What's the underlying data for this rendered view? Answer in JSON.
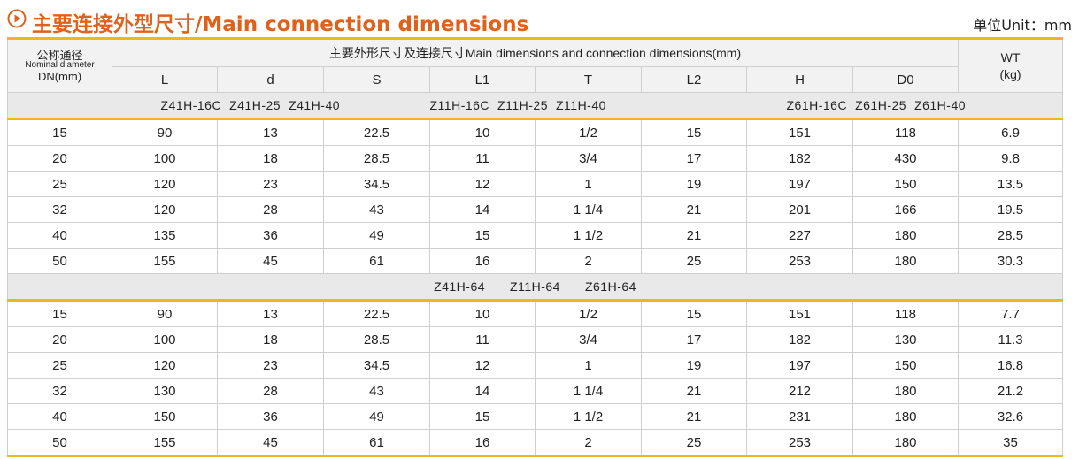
{
  "header": {
    "title": "主要连接外型尺寸/Main connection dimensions",
    "unit": "单位Unit：mm",
    "accent_color": "#e0611b",
    "rule_color": "#f2b51a"
  },
  "table": {
    "dn_header": {
      "zh": "公称通径",
      "en": "Nominal diameter",
      "dn": "DN(mm)"
    },
    "group_header": "主要外形尺寸及连接尺寸Main dimensions and connection dimensions(mm)",
    "wt_header": {
      "line1": "WT",
      "line2": "(kg)"
    },
    "columns": [
      "L",
      "d",
      "S",
      "L1",
      "T",
      "L2",
      "H",
      "D0"
    ],
    "sections": [
      {
        "models": [
          "Z41H-16C",
          "Z41H-25",
          "Z41H-40",
          "Z11H-16C",
          "Z11H-25",
          "Z11H-40",
          "Z61H-16C",
          "Z61H-25",
          "Z61H-40"
        ],
        "rows": [
          [
            "15",
            "90",
            "13",
            "22.5",
            "10",
            "1/2",
            "15",
            "151",
            "118",
            "6.9"
          ],
          [
            "20",
            "100",
            "18",
            "28.5",
            "11",
            "3/4",
            "17",
            "182",
            "430",
            "9.8"
          ],
          [
            "25",
            "120",
            "23",
            "34.5",
            "12",
            "1",
            "19",
            "197",
            "150",
            "13.5"
          ],
          [
            "32",
            "120",
            "28",
            "43",
            "14",
            "1 1/4",
            "21",
            "201",
            "166",
            "19.5"
          ],
          [
            "40",
            "135",
            "36",
            "49",
            "15",
            "1 1/2",
            "21",
            "227",
            "180",
            "28.5"
          ],
          [
            "50",
            "155",
            "45",
            "61",
            "16",
            "2",
            "25",
            "253",
            "180",
            "30.3"
          ]
        ]
      },
      {
        "models": [
          "Z41H-64",
          "Z11H-64",
          "Z61H-64"
        ],
        "rows": [
          [
            "15",
            "90",
            "13",
            "22.5",
            "10",
            "1/2",
            "15",
            "151",
            "118",
            "7.7"
          ],
          [
            "20",
            "100",
            "18",
            "28.5",
            "11",
            "3/4",
            "17",
            "182",
            "130",
            "11.3"
          ],
          [
            "25",
            "120",
            "23",
            "34.5",
            "12",
            "1",
            "19",
            "197",
            "150",
            "16.8"
          ],
          [
            "32",
            "130",
            "28",
            "43",
            "14",
            "1 1/4",
            "21",
            "212",
            "180",
            "21.2"
          ],
          [
            "40",
            "150",
            "36",
            "49",
            "15",
            "1 1/2",
            "21",
            "231",
            "180",
            "32.6"
          ],
          [
            "50",
            "155",
            "45",
            "61",
            "16",
            "2",
            "25",
            "253",
            "180",
            "35"
          ]
        ]
      }
    ]
  }
}
